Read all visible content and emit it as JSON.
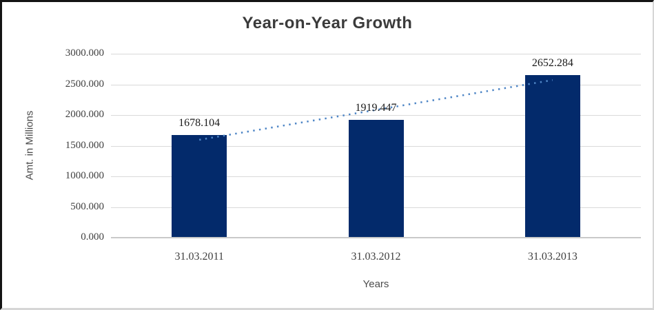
{
  "chart_data": {
    "type": "bar",
    "title": "Year-on-Year Growth",
    "xlabel": "Years",
    "ylabel": "Amt. in Millions",
    "categories": [
      "31.03.2011",
      "31.03.2012",
      "31.03.2013"
    ],
    "values": [
      1678.104,
      1919.447,
      2652.284
    ],
    "value_labels": [
      "1678.104",
      "1919.447",
      "2652.284"
    ],
    "ylim": [
      0,
      3000
    ],
    "ytick_step": 500,
    "ytick_labels": [
      "0.000",
      "500.000",
      "1000.000",
      "1500.000",
      "2000.000",
      "2500.000",
      "3000.000"
    ],
    "grid": true,
    "legend_position": "none",
    "bar_color": "#032a6b",
    "trendline": {
      "type": "linear",
      "style": "dotted",
      "color": "#4f86c6"
    },
    "colors": {
      "grid": "#d9d9d9",
      "axis_line": "#c9c9c9",
      "title": "#3b3b3b",
      "tick_label": "#3f3f3f",
      "data_label": "#1a1a1a",
      "axis_title": "#4c4c4c"
    }
  }
}
